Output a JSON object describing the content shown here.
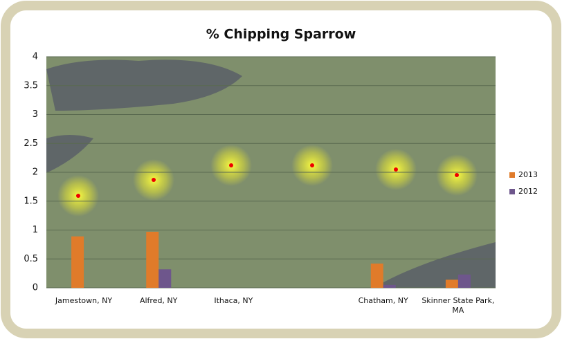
{
  "chart_data": {
    "type": "bar",
    "title": "% Chipping Sparrow",
    "categories": [
      "Jamestown, NY",
      "Alfred, NY",
      "Ithaca, NY",
      null,
      "Chatham, NY",
      "Skinner State Park, MA"
    ],
    "series": [
      {
        "name": "2013",
        "color": "#e07b2a",
        "values": [
          0.89,
          0.97,
          0,
          0,
          0.42,
          0.14
        ]
      },
      {
        "name": "2012",
        "color": "#6e568c",
        "values": [
          0,
          0.32,
          0,
          0,
          0.05,
          0.23
        ]
      }
    ],
    "ylim": [
      0,
      4
    ],
    "yticks": [
      0,
      0.5,
      1,
      1.5,
      2,
      2.5,
      3,
      3.5,
      4
    ],
    "grid": true,
    "legend": "right"
  }
}
